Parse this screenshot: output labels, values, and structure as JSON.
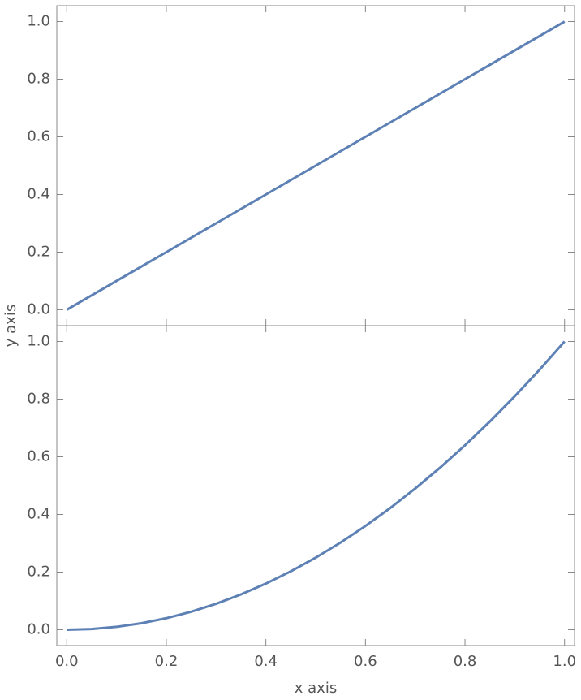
{
  "chart_data": [
    {
      "type": "line",
      "ylabel": "y axis",
      "x": [
        0,
        0.05,
        0.1,
        0.15,
        0.2,
        0.25,
        0.3,
        0.35,
        0.4,
        0.45,
        0.5,
        0.55,
        0.6,
        0.65,
        0.7,
        0.75,
        0.8,
        0.85,
        0.9,
        0.95,
        1
      ],
      "values": [
        0,
        0.05,
        0.1,
        0.15,
        0.2,
        0.25,
        0.3,
        0.35,
        0.4,
        0.45,
        0.5,
        0.55,
        0.6,
        0.65,
        0.7,
        0.75,
        0.8,
        0.85,
        0.9,
        0.95,
        1
      ],
      "color": "#5e81b5",
      "xlim": [
        -0.02,
        1.02
      ],
      "ylim": [
        -0.055,
        1.055
      ],
      "xticks": [
        0,
        0.2,
        0.4,
        0.6,
        0.8,
        1
      ],
      "yticks": [
        {
          "value": 0,
          "label": "0.0"
        },
        0.2,
        0.4,
        0.6,
        0.8,
        {
          "value": 1,
          "label": "1.0"
        }
      ]
    },
    {
      "type": "line",
      "xlabel": "x axis",
      "x": [
        0,
        0.05,
        0.1,
        0.15,
        0.2,
        0.25,
        0.3,
        0.35,
        0.4,
        0.45,
        0.5,
        0.55,
        0.6,
        0.65,
        0.7,
        0.75,
        0.8,
        0.85,
        0.9,
        0.95,
        1
      ],
      "values": [
        0,
        0.0025,
        0.01,
        0.0225,
        0.04,
        0.0625,
        0.09,
        0.1225,
        0.16,
        0.2025,
        0.25,
        0.3025,
        0.36,
        0.4225,
        0.49,
        0.5625,
        0.64,
        0.7225,
        0.81,
        0.9025,
        1
      ],
      "color": "#5e81b5",
      "xlim": [
        -0.02,
        1.02
      ],
      "ylim": [
        -0.055,
        1.055
      ],
      "xticks": [
        {
          "value": 0,
          "label": "0.0"
        },
        0.2,
        0.4,
        0.6,
        0.8,
        {
          "value": 1,
          "label": "1.0"
        }
      ],
      "yticks": [
        {
          "value": 0,
          "label": "0.0"
        },
        0.2,
        0.4,
        0.6,
        0.8,
        {
          "value": 1,
          "label": "1.0"
        }
      ]
    }
  ]
}
